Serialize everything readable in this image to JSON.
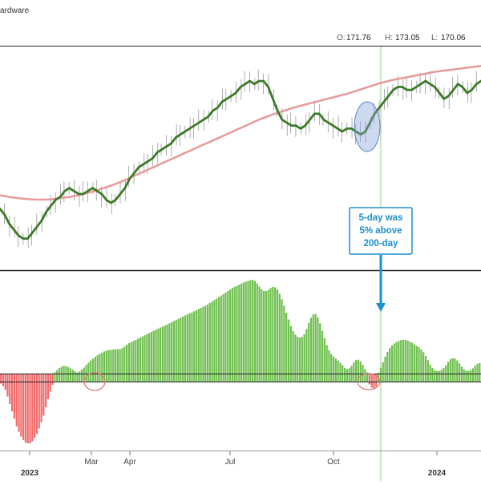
{
  "header": {
    "title": "ardware",
    "ohlc": [
      {
        "label": "O:",
        "value": "171.76"
      },
      {
        "label": "H:",
        "value": "173.05"
      },
      {
        "label": "L:",
        "value": "170.06"
      }
    ]
  },
  "annotation": {
    "lines": [
      "5-day was",
      "5% above",
      "200-day"
    ]
  },
  "colors": {
    "price_line": "#3c7a28",
    "ma_line": "#e79a9a",
    "bar_positive": "#6fbf4f",
    "bar_negative": "#f06b6b",
    "callout": "#1d8fcf",
    "highlight_ellipse": "#7f9fd8",
    "circle_marker": "#e07b7b",
    "signal_line": "#9cc98a"
  },
  "chart_data": [
    {
      "type": "line",
      "title": "",
      "x_labels": [
        "2023",
        "Mar",
        "Apr",
        "Jul",
        "Oct",
        "2024"
      ],
      "series": [
        {
          "style": "price-5day-smoothed",
          "values": [
            146,
            144,
            141,
            139,
            137,
            136,
            136,
            138,
            140,
            142,
            145,
            147,
            149,
            150,
            152,
            153,
            152,
            151,
            151,
            152,
            153,
            152,
            151,
            149,
            148,
            149,
            151,
            153,
            156,
            158,
            160,
            161,
            162,
            163,
            165,
            166,
            167,
            168,
            170,
            171,
            172,
            173,
            174,
            175,
            176,
            177,
            179,
            180,
            182,
            183,
            184,
            185,
            187,
            188,
            189,
            188,
            189,
            189,
            187,
            183,
            179,
            176,
            175,
            174,
            174,
            173,
            174,
            176,
            178,
            178,
            176,
            175,
            174,
            173,
            172,
            173,
            173,
            172,
            171,
            172,
            175,
            178,
            180,
            182,
            184,
            186,
            187,
            187,
            186,
            186,
            187,
            188,
            189,
            188,
            187,
            185,
            183,
            184,
            186,
            188,
            187,
            185,
            186,
            188,
            189
          ]
        },
        {
          "style": "ma-200day",
          "values": [
            150.5,
            150.3,
            150,
            149.8,
            149.6,
            149.4,
            149.3,
            149.2,
            149.1,
            149.1,
            149.1,
            149.2,
            149.4,
            149.6,
            149.8,
            150,
            150.3,
            150.6,
            151,
            151.4,
            151.8,
            152.3,
            152.8,
            153.3,
            153.8,
            154.4,
            155,
            155.7,
            156.4,
            157.1,
            157.8,
            158.5,
            159.2,
            159.9,
            160.6,
            161.3,
            162,
            162.7,
            163.4,
            164.1,
            164.8,
            165.5,
            166.2,
            166.9,
            167.6,
            168.3,
            169,
            169.7,
            170.4,
            171.1,
            171.8,
            172.5,
            173.2,
            173.9,
            174.6,
            175.3,
            176,
            176.6,
            177.2,
            177.8,
            178.3,
            178.8,
            179.3,
            179.8,
            180.3,
            180.7,
            181.1,
            181.5,
            181.9,
            182.3,
            182.7,
            183.1,
            183.5,
            183.9,
            184.3,
            184.7,
            185.2,
            185.7,
            186.2,
            186.7,
            187.2,
            187.7,
            188.2,
            188.6,
            189,
            189.4,
            189.7,
            190,
            190.3,
            190.6,
            190.9,
            191.2,
            191.5,
            191.8,
            192.1,
            192.3,
            192.5,
            192.7,
            192.9,
            193.1,
            193.3,
            193.5,
            193.7,
            193.9,
            194.1
          ]
        }
      ]
    },
    {
      "type": "bar",
      "title": "",
      "x_labels": [
        "2023",
        "Mar",
        "Apr",
        "Jul",
        "Oct",
        "2024"
      ],
      "series": [
        {
          "style": "percent-above-below",
          "values": [
            -0.3,
            -0.7,
            -1.2,
            -2.2,
            -3.3,
            -4.4,
            -5.5,
            -6.6,
            -7.4,
            -8.1,
            -8.6,
            -9.0,
            -9.1,
            -9.1,
            -8.8,
            -8.3,
            -7.7,
            -6.9,
            -6.0,
            -5.0,
            -3.8,
            -2.6,
            -1.5,
            -0.5,
            0.3,
            0.9,
            1.5,
            1.8,
            2.1,
            2.0,
            1.7,
            1.4,
            1.0,
            0.6,
            0.3,
            0.6,
            1.1,
            1.6,
            2.3,
            2.9,
            3.5,
            4.0,
            4.5,
            4.9,
            5.3,
            5.6,
            5.9,
            6.1,
            6.3,
            6.3,
            6.4,
            6.5,
            6.5,
            6.5,
            6.8,
            7.2,
            7.7,
            8.1,
            8.4,
            8.7,
            9.0,
            9.3,
            9.6,
            9.9,
            10.2,
            10.5,
            10.8,
            11.1,
            11.4,
            11.7,
            12.0,
            12.3,
            12.5,
            12.8,
            13.1,
            13.4,
            13.7,
            14.0,
            14.3,
            14.6,
            14.9,
            15.2,
            15.5,
            15.8,
            16.1,
            16.3,
            16.6,
            16.9,
            17.2,
            17.5,
            17.8,
            18.1,
            18.4,
            18.8,
            19.2,
            19.6,
            20.0,
            20.4,
            20.8,
            21.2,
            21.6,
            22.0,
            22.4,
            22.8,
            23.1,
            23.4,
            23.7,
            24.0,
            24.3,
            24.5,
            24.7,
            24.9,
            25.0,
            24.7,
            24.0,
            23.2,
            22.5,
            22.0,
            22.0,
            22.3,
            22.8,
            23.1,
            23.0,
            22.4,
            21.3,
            19.8,
            18.1,
            16.2,
            14.4,
            12.7,
            11.3,
            10.4,
            9.8,
            9.6,
            9.8,
            10.5,
            11.9,
            13.5,
            14.9,
            15.8,
            15.9,
            15.0,
            13.4,
            11.4,
            9.4,
            7.6,
            6.2,
            5.2,
            4.5,
            4.0,
            3.5,
            2.9,
            2.2,
            1.5,
            1.2,
            1.4,
            2.1,
            3.0,
            3.6,
            3.7,
            3.2,
            2.3,
            1.2,
            0.3,
            -0.4,
            -0.9,
            -1.0,
            -0.7,
            0.2,
            1.5,
            3.0,
            4.5,
            5.8,
            6.8,
            7.5,
            8.0,
            8.4,
            8.7,
            8.9,
            9.0,
            9.0,
            8.8,
            8.5,
            8.2,
            7.8,
            7.4,
            7.0,
            6.4,
            5.7,
            4.7,
            3.6,
            2.4,
            1.5,
            0.9,
            0.7,
            0.7,
            1.0,
            1.5,
            2.2,
            3.1,
            3.8,
            4.1,
            4.0,
            3.5,
            2.7,
            1.9,
            1.2,
            0.8,
            0.7,
            0.9,
            1.4,
            2.1,
            2.6,
            2.8
          ]
        }
      ]
    }
  ]
}
